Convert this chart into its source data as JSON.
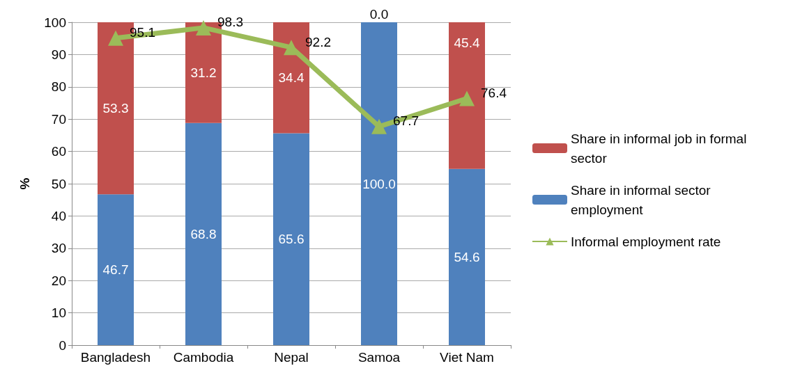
{
  "chart_data": {
    "type": "bar",
    "stacked": true,
    "ylabel": "%",
    "categories": [
      "Bangladesh",
      "Cambodia",
      "Nepal",
      "Samoa",
      "Viet Nam"
    ],
    "series": [
      {
        "name": "Share in informal sector employment",
        "color": "#4f81bd",
        "values": [
          46.7,
          68.8,
          65.6,
          100,
          54.6
        ],
        "value_labels": [
          "46.7",
          "68.8",
          "65.6",
          "100.0",
          "54.6"
        ]
      },
      {
        "name": "Share in informal job in formal sector",
        "color": "#c0504d",
        "values": [
          53.3,
          31.2,
          34.4,
          0,
          45.4
        ],
        "value_labels": [
          "53.3",
          "31.2",
          "34.4",
          "0.0",
          "45.4"
        ]
      },
      {
        "name": "Informal employment rate",
        "type": "line",
        "color": "#9bbb59",
        "values": [
          95.1,
          98.3,
          92.2,
          67.7,
          76.4
        ],
        "value_labels": [
          "95.1",
          "98.3",
          "92.2",
          "67.7",
          "76.4"
        ]
      }
    ],
    "ylim": [
      0,
      100
    ],
    "yticks": [
      0,
      10,
      20,
      30,
      40,
      50,
      60,
      70,
      80,
      90,
      100
    ],
    "grid": "y",
    "legend": "right",
    "marker": "triangle"
  }
}
